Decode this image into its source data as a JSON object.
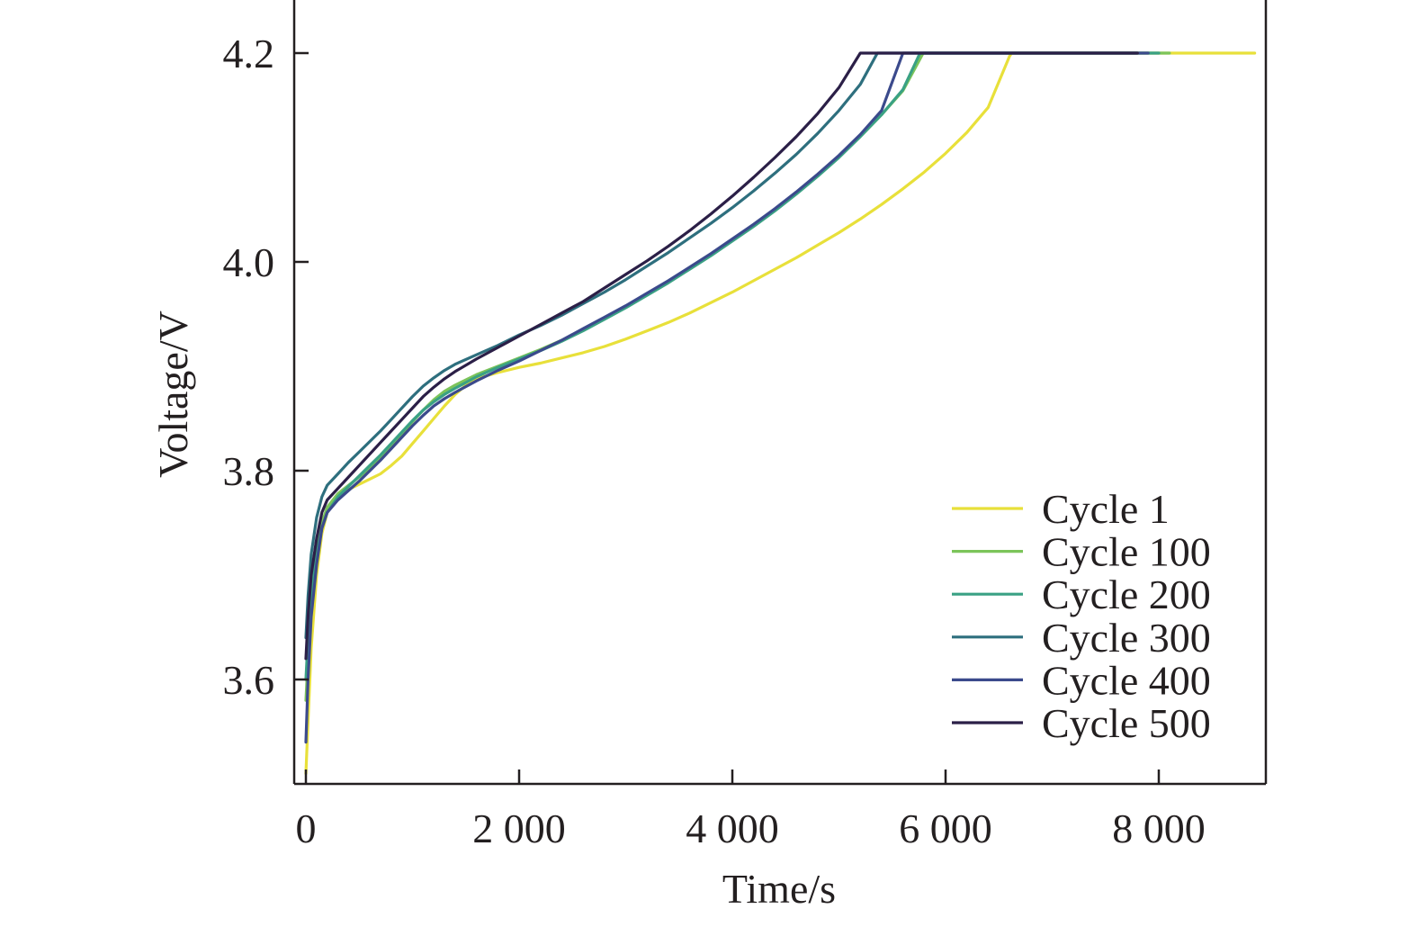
{
  "chart_data": {
    "type": "line",
    "title": "",
    "xlabel": "Time/s",
    "ylabel": "Voltage/V",
    "xlim": [
      -100,
      9000
    ],
    "ylim": [
      3.5,
      4.25
    ],
    "xticks": [
      0,
      2000,
      4000,
      6000,
      8000
    ],
    "xtick_labels": [
      "0",
      "2 000",
      "4 000",
      "6 000",
      "8 000"
    ],
    "yticks": [
      3.6,
      3.8,
      4.0,
      4.2
    ],
    "ytick_labels": [
      "3.6",
      "3.8",
      "4.0",
      "4.2"
    ],
    "grid": false,
    "legend_position": "lower-right",
    "series": [
      {
        "name": "Cycle 1",
        "color": "#e8e03a",
        "x": [
          0,
          20,
          50,
          100,
          150,
          200,
          300,
          400,
          500,
          600,
          700,
          800,
          900,
          1000,
          1100,
          1200,
          1300,
          1400,
          1500,
          1600,
          1700,
          1800,
          2000,
          2200,
          2400,
          2600,
          2800,
          3000,
          3200,
          3400,
          3600,
          3800,
          4000,
          4200,
          4400,
          4600,
          4800,
          5000,
          5200,
          5400,
          5600,
          5800,
          6000,
          6200,
          6400,
          6600,
          6620,
          7000,
          7500,
          8000,
          8500,
          8900
        ],
        "y": [
          3.51,
          3.56,
          3.63,
          3.7,
          3.74,
          3.76,
          3.775,
          3.782,
          3.787,
          3.792,
          3.797,
          3.805,
          3.814,
          3.826,
          3.838,
          3.85,
          3.862,
          3.873,
          3.882,
          3.888,
          3.891,
          3.894,
          3.899,
          3.903,
          3.908,
          3.913,
          3.919,
          3.926,
          3.934,
          3.942,
          3.951,
          3.961,
          3.971,
          3.982,
          3.993,
          4.004,
          4.016,
          4.028,
          4.041,
          4.055,
          4.07,
          4.086,
          4.104,
          4.124,
          4.148,
          4.197,
          4.2,
          4.2,
          4.2,
          4.2,
          4.2,
          4.2
        ]
      },
      {
        "name": "Cycle 100",
        "color": "#7cc45a",
        "x": [
          0,
          20,
          50,
          100,
          150,
          200,
          300,
          400,
          500,
          600,
          700,
          800,
          900,
          1000,
          1100,
          1200,
          1300,
          1400,
          1600,
          1800,
          2000,
          2200,
          2400,
          2600,
          2800,
          3000,
          3200,
          3400,
          3600,
          3800,
          4000,
          4200,
          4400,
          4600,
          4800,
          5000,
          5200,
          5400,
          5600,
          5790,
          6200,
          7000,
          7500,
          8100
        ],
        "y": [
          3.58,
          3.62,
          3.67,
          3.72,
          3.75,
          3.765,
          3.778,
          3.786,
          3.794,
          3.803,
          3.813,
          3.824,
          3.835,
          3.847,
          3.858,
          3.868,
          3.876,
          3.882,
          3.892,
          3.9,
          3.908,
          3.916,
          3.925,
          3.935,
          3.946,
          3.957,
          3.969,
          3.981,
          3.994,
          4.007,
          4.021,
          4.035,
          4.05,
          4.066,
          4.083,
          4.101,
          4.12,
          4.141,
          4.164,
          4.2,
          4.2,
          4.2,
          4.2,
          4.2
        ]
      },
      {
        "name": "Cycle 200",
        "color": "#3aa184",
        "x": [
          0,
          20,
          50,
          100,
          150,
          200,
          300,
          400,
          500,
          600,
          700,
          800,
          900,
          1000,
          1100,
          1200,
          1300,
          1400,
          1600,
          1800,
          2000,
          2200,
          2400,
          2600,
          2800,
          3000,
          3200,
          3400,
          3600,
          3800,
          4000,
          4200,
          4400,
          4600,
          4800,
          5000,
          5200,
          5400,
          5600,
          5760,
          6200,
          7000,
          7500,
          8000
        ],
        "y": [
          3.6,
          3.64,
          3.68,
          3.72,
          3.745,
          3.76,
          3.775,
          3.785,
          3.795,
          3.805,
          3.815,
          3.826,
          3.837,
          3.848,
          3.858,
          3.866,
          3.873,
          3.879,
          3.89,
          3.899,
          3.907,
          3.915,
          3.924,
          3.934,
          3.945,
          3.956,
          3.968,
          3.98,
          3.993,
          4.006,
          4.02,
          4.034,
          4.049,
          4.065,
          4.082,
          4.1,
          4.12,
          4.141,
          4.165,
          4.2,
          4.2,
          4.2,
          4.2,
          4.2
        ]
      },
      {
        "name": "Cycle 300",
        "color": "#2e6f7e",
        "x": [
          0,
          20,
          50,
          100,
          150,
          200,
          300,
          400,
          500,
          600,
          700,
          800,
          900,
          1000,
          1100,
          1200,
          1300,
          1400,
          1600,
          1800,
          2000,
          2200,
          2400,
          2600,
          2800,
          3000,
          3200,
          3400,
          3600,
          3800,
          4000,
          4200,
          4400,
          4600,
          4800,
          5000,
          5200,
          5360,
          6000,
          7000,
          7800
        ],
        "y": [
          3.64,
          3.68,
          3.72,
          3.755,
          3.775,
          3.786,
          3.797,
          3.808,
          3.818,
          3.828,
          3.838,
          3.849,
          3.86,
          3.871,
          3.881,
          3.889,
          3.896,
          3.902,
          3.911,
          3.92,
          3.93,
          3.939,
          3.949,
          3.96,
          3.971,
          3.983,
          3.996,
          4.009,
          4.023,
          4.037,
          4.052,
          4.068,
          4.085,
          4.103,
          4.123,
          4.145,
          4.17,
          4.2,
          4.2,
          4.2,
          4.2
        ]
      },
      {
        "name": "Cycle 400",
        "color": "#3b4a8c",
        "x": [
          0,
          20,
          50,
          100,
          150,
          200,
          300,
          400,
          500,
          600,
          700,
          800,
          900,
          1000,
          1100,
          1200,
          1300,
          1400,
          1600,
          1800,
          2000,
          2200,
          2400,
          2600,
          2800,
          3000,
          3200,
          3400,
          3600,
          3800,
          4000,
          4200,
          4400,
          4600,
          4800,
          5000,
          5200,
          5400,
          5600,
          6000,
          7000,
          7900
        ],
        "y": [
          3.54,
          3.6,
          3.66,
          3.71,
          3.745,
          3.76,
          3.772,
          3.781,
          3.79,
          3.8,
          3.81,
          3.821,
          3.832,
          3.843,
          3.853,
          3.862,
          3.869,
          3.875,
          3.886,
          3.896,
          3.905,
          3.915,
          3.925,
          3.936,
          3.947,
          3.958,
          3.97,
          3.982,
          3.995,
          4.008,
          4.022,
          4.036,
          4.051,
          4.067,
          4.084,
          4.102,
          4.122,
          4.145,
          4.2,
          4.2,
          4.2,
          4.2
        ]
      },
      {
        "name": "Cycle 500",
        "color": "#2b1f47",
        "x": [
          0,
          20,
          50,
          100,
          150,
          200,
          300,
          400,
          500,
          600,
          700,
          800,
          900,
          1000,
          1100,
          1200,
          1300,
          1400,
          1600,
          1800,
          2000,
          2200,
          2400,
          2600,
          2800,
          3000,
          3200,
          3400,
          3600,
          3800,
          4000,
          4200,
          4400,
          4600,
          4800,
          5000,
          5200,
          6000,
          7000,
          7800
        ],
        "y": [
          3.62,
          3.66,
          3.7,
          3.735,
          3.76,
          3.772,
          3.783,
          3.794,
          3.805,
          3.816,
          3.827,
          3.838,
          3.849,
          3.86,
          3.871,
          3.88,
          3.888,
          3.895,
          3.907,
          3.918,
          3.929,
          3.94,
          3.951,
          3.962,
          3.975,
          3.988,
          4.001,
          4.015,
          4.03,
          4.046,
          4.063,
          4.081,
          4.1,
          4.12,
          4.142,
          4.167,
          4.2,
          4.2,
          4.2,
          4.2
        ]
      }
    ]
  }
}
